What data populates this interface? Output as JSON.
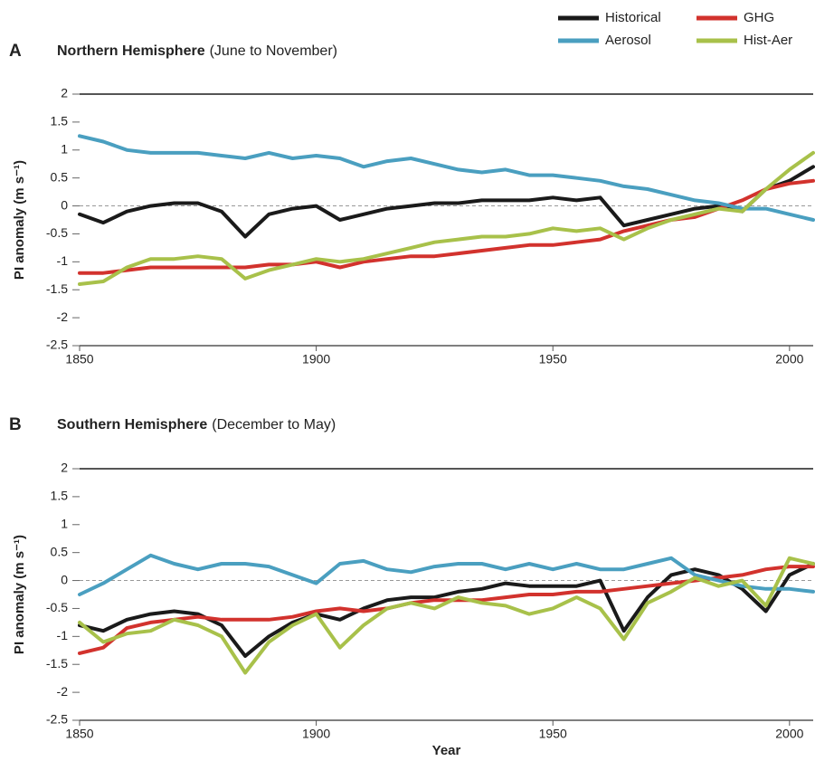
{
  "chart_data": [
    {
      "type": "line",
      "panel": "A",
      "title": "Northern Hemisphere",
      "subtitle": "(June to November)",
      "y_label": "PI anomaly (m s⁻¹)",
      "x": [
        1850,
        1855,
        1860,
        1865,
        1870,
        1875,
        1880,
        1885,
        1890,
        1895,
        1900,
        1905,
        1910,
        1915,
        1920,
        1925,
        1930,
        1935,
        1940,
        1945,
        1950,
        1955,
        1960,
        1965,
        1970,
        1975,
        1980,
        1985,
        1990,
        1995,
        2000,
        2005
      ],
      "xlim": [
        1850,
        2005
      ],
      "xticks": [
        1850,
        1900,
        1950,
        2000
      ],
      "ylim": [
        -2.5,
        2
      ],
      "yticks": [
        -2.5,
        -2,
        -1.5,
        -1,
        -0.5,
        0,
        0.5,
        1,
        1.5,
        2
      ],
      "series": [
        {
          "name": "Historical",
          "color": "#1a1a1a",
          "values": [
            -0.15,
            -0.3,
            -0.1,
            0.0,
            0.05,
            0.05,
            -0.1,
            -0.55,
            -0.15,
            -0.05,
            0.0,
            -0.25,
            -0.15,
            -0.05,
            0.0,
            0.05,
            0.05,
            0.1,
            0.1,
            0.1,
            0.15,
            0.1,
            0.15,
            -0.35,
            -0.25,
            -0.15,
            -0.05,
            0.0,
            -0.1,
            0.3,
            0.45,
            0.7
          ]
        },
        {
          "name": "GHG",
          "color": "#d2322d",
          "values": [
            -1.2,
            -1.2,
            -1.15,
            -1.1,
            -1.1,
            -1.1,
            -1.1,
            -1.1,
            -1.05,
            -1.05,
            -1.0,
            -1.1,
            -1.0,
            -0.95,
            -0.9,
            -0.9,
            -0.85,
            -0.8,
            -0.75,
            -0.7,
            -0.7,
            -0.65,
            -0.6,
            -0.45,
            -0.35,
            -0.25,
            -0.2,
            -0.05,
            0.1,
            0.3,
            0.4,
            0.45
          ]
        },
        {
          "name": "Aerosol",
          "color": "#4a9fc0",
          "values": [
            1.25,
            1.15,
            1.0,
            0.95,
            0.95,
            0.95,
            0.9,
            0.85,
            0.95,
            0.85,
            0.9,
            0.85,
            0.7,
            0.8,
            0.85,
            0.75,
            0.65,
            0.6,
            0.65,
            0.55,
            0.55,
            0.5,
            0.45,
            0.35,
            0.3,
            0.2,
            0.1,
            0.05,
            -0.05,
            -0.05,
            -0.15,
            -0.25
          ]
        },
        {
          "name": "Hist-Aer",
          "color": "#a8c14a",
          "values": [
            -1.4,
            -1.35,
            -1.1,
            -0.95,
            -0.95,
            -0.9,
            -0.95,
            -1.3,
            -1.15,
            -1.05,
            -0.95,
            -1.0,
            -0.95,
            -0.85,
            -0.75,
            -0.65,
            -0.6,
            -0.55,
            -0.55,
            -0.5,
            -0.4,
            -0.45,
            -0.4,
            -0.6,
            -0.4,
            -0.25,
            -0.15,
            -0.05,
            -0.1,
            0.3,
            0.65,
            0.95
          ]
        }
      ]
    },
    {
      "type": "line",
      "panel": "B",
      "title": "Southern Hemisphere",
      "subtitle": "(December to May)",
      "y_label": "PI anomaly (m s⁻¹)",
      "x_label": "Year",
      "x": [
        1850,
        1855,
        1860,
        1865,
        1870,
        1875,
        1880,
        1885,
        1890,
        1895,
        1900,
        1905,
        1910,
        1915,
        1920,
        1925,
        1930,
        1935,
        1940,
        1945,
        1950,
        1955,
        1960,
        1965,
        1970,
        1975,
        1980,
        1985,
        1990,
        1995,
        2000,
        2005
      ],
      "xlim": [
        1850,
        2005
      ],
      "xticks": [
        1850,
        1900,
        1950,
        2000
      ],
      "ylim": [
        -2.5,
        2
      ],
      "yticks": [
        -2.5,
        -2,
        -1.5,
        -1,
        -0.5,
        0,
        0.5,
        1,
        1.5,
        2
      ],
      "series": [
        {
          "color": "#1a1a1a",
          "values": [
            -0.8,
            -0.9,
            -0.7,
            -0.6,
            -0.55,
            -0.6,
            -0.8,
            -1.35,
            -1.0,
            -0.75,
            -0.6,
            -0.7,
            -0.5,
            -0.35,
            -0.3,
            -0.3,
            -0.2,
            -0.15,
            -0.05,
            -0.1,
            -0.1,
            -0.1,
            0.0,
            -0.9,
            -0.3,
            0.1,
            0.2,
            0.1,
            -0.15,
            -0.55,
            0.1,
            0.3
          ]
        },
        {
          "color": "#d2322d",
          "values": [
            -1.3,
            -1.2,
            -0.85,
            -0.75,
            -0.7,
            -0.65,
            -0.7,
            -0.7,
            -0.7,
            -0.65,
            -0.55,
            -0.5,
            -0.55,
            -0.5,
            -0.4,
            -0.35,
            -0.35,
            -0.35,
            -0.3,
            -0.25,
            -0.25,
            -0.2,
            -0.2,
            -0.15,
            -0.1,
            -0.05,
            0.0,
            0.05,
            0.1,
            0.2,
            0.25,
            0.25
          ]
        },
        {
          "color": "#4a9fc0",
          "values": [
            -0.25,
            -0.05,
            0.2,
            0.45,
            0.3,
            0.2,
            0.3,
            0.3,
            0.25,
            0.1,
            -0.05,
            0.3,
            0.35,
            0.2,
            0.15,
            0.25,
            0.3,
            0.3,
            0.2,
            0.3,
            0.2,
            0.3,
            0.2,
            0.2,
            0.3,
            0.4,
            0.1,
            0.0,
            -0.1,
            -0.15,
            -0.15,
            -0.2
          ]
        },
        {
          "color": "#a8c14a",
          "values": [
            -0.75,
            -1.1,
            -0.95,
            -0.9,
            -0.7,
            -0.8,
            -1.0,
            -1.65,
            -1.1,
            -0.8,
            -0.6,
            -1.2,
            -0.8,
            -0.5,
            -0.4,
            -0.5,
            -0.3,
            -0.4,
            -0.45,
            -0.6,
            -0.5,
            -0.3,
            -0.5,
            -1.05,
            -0.4,
            -0.2,
            0.05,
            -0.1,
            0.0,
            -0.45,
            0.4,
            0.3
          ]
        }
      ]
    }
  ]
}
